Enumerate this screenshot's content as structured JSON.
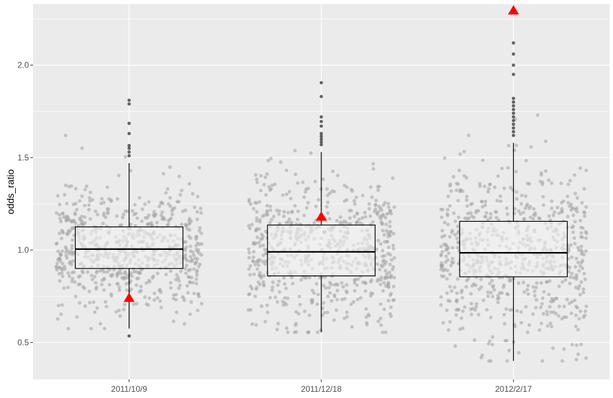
{
  "chart_data": {
    "type": "boxplot-with-jitter",
    "title": "",
    "xlabel": "",
    "ylabel": "odds_ratio",
    "ylim": [
      0.3,
      2.33
    ],
    "yticks": [
      0.5,
      1.0,
      1.5,
      2.0
    ],
    "ytick_labels": [
      "0.5",
      "1.0",
      "1.5",
      "2.0"
    ],
    "grid": true,
    "legend": "none",
    "categories": [
      "2011/10/9",
      "2011/12/18",
      "2012/2/17"
    ],
    "boxes": [
      {
        "category": "2011/10/9",
        "q1": 0.9,
        "median": 1.005,
        "q3": 1.125,
        "whisker_low": 0.575,
        "whisker_high": 1.47,
        "outliers": [
          0.535,
          1.51,
          1.53,
          1.55,
          1.565,
          1.63,
          1.685,
          1.79,
          1.81
        ]
      },
      {
        "category": "2011/12/18",
        "q1": 0.86,
        "median": 0.99,
        "q3": 1.135,
        "whisker_low": 0.555,
        "whisker_high": 1.53,
        "outliers": [
          1.57,
          1.585,
          1.6,
          1.615,
          1.63,
          1.67,
          1.695,
          1.72,
          1.83,
          1.905
        ]
      },
      {
        "category": "2012/2/17",
        "q1": 0.855,
        "median": 0.985,
        "q3": 1.155,
        "whisker_low": 0.4,
        "whisker_high": 1.58,
        "outliers": [
          1.62,
          1.64,
          1.66,
          1.68,
          1.7,
          1.72,
          1.74,
          1.76,
          1.78,
          1.8,
          1.82,
          1.95,
          2.0,
          2.06,
          2.12
        ]
      }
    ],
    "markers": [
      {
        "category": "2011/10/9",
        "value": 0.74,
        "shape": "triangle",
        "color": "#ff0000"
      },
      {
        "category": "2011/12/18",
        "value": 1.18,
        "shape": "triangle",
        "color": "#ff0000"
      },
      {
        "category": "2012/2/17",
        "value": 2.295,
        "shape": "triangle",
        "color": "#ff0000"
      }
    ],
    "jitter_points_per_group": 700,
    "colors": {
      "panel_background": "#ebebeb",
      "grid": "#ffffff",
      "jitter_point": "#a6a6a6",
      "box_fill": "#f2f2f2",
      "box_line": "#000000",
      "outlier": "#333333"
    }
  }
}
